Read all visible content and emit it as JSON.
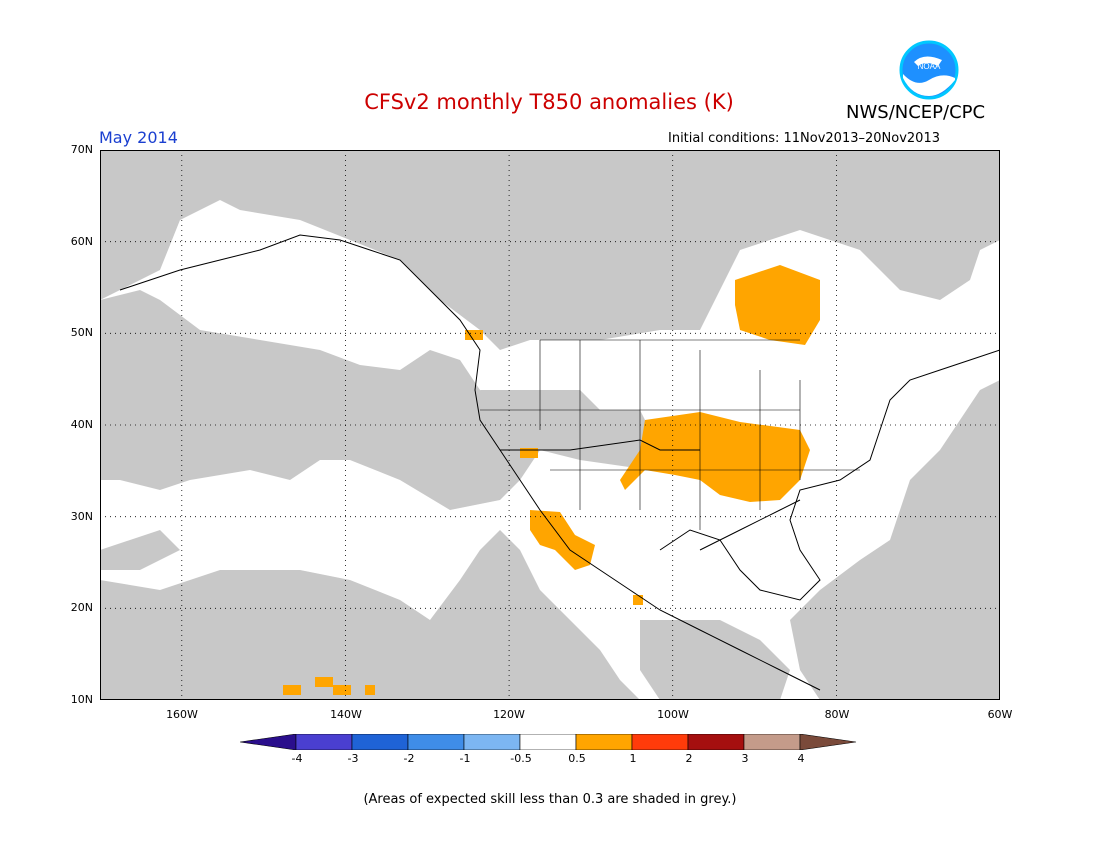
{
  "header": {
    "title": "CFSv2 monthly T850 anomalies (K)",
    "org": "NWS/NCEP/CPC",
    "month": "May 2014",
    "init_conditions": "Initial conditions: 11Nov2013–20Nov2013",
    "logo_text": "NOAA"
  },
  "axes": {
    "lat_labels": [
      "70N",
      "60N",
      "50N",
      "40N",
      "30N",
      "20N",
      "10N"
    ],
    "lon_labels": [
      "160W",
      "140W",
      "120W",
      "100W",
      "80W",
      "60W"
    ]
  },
  "colorbar": {
    "labels": [
      "-4",
      "-3",
      "-2",
      "-1",
      "-0.5",
      "0.5",
      "1",
      "2",
      "3",
      "4"
    ],
    "colors": [
      "#2a0e8c",
      "#4a3fd0",
      "#1f63d6",
      "#3f8de8",
      "#7cb6f2",
      "#ffffff",
      "#ffa500",
      "#ff3b0a",
      "#a50f0f",
      "#c49b8a",
      "#7a4a3a"
    ]
  },
  "legend_note": "(Areas of expected skill less than 0.3 are shaded in grey.)",
  "colors": {
    "skill_grey": "#c8c8c8",
    "warm_anomaly": "#ffa500",
    "title_red": "#cc0000",
    "month_blue": "#1a3fd0"
  }
}
